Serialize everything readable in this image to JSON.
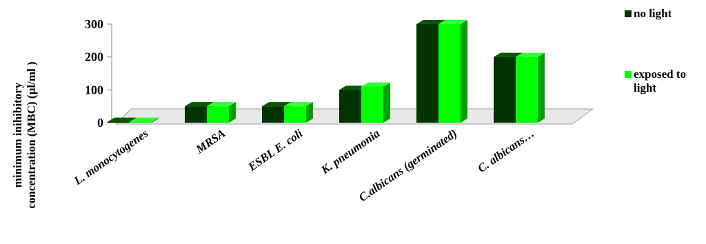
{
  "chart_data": {
    "type": "bar",
    "categories": [
      "L. monocytogenes",
      "MRSA",
      "ESBL E. coli",
      "K. pneumonia",
      "C.albicans (germinated)",
      "C.  albicans…"
    ],
    "series": [
      {
        "name": "no light",
        "values": [
          3,
          50,
          50,
          100,
          300,
          200
        ]
      },
      {
        "name": "exposed to light",
        "values": [
          3,
          50,
          50,
          110,
          300,
          200
        ]
      }
    ],
    "ylim": [
      0,
      300
    ],
    "yticks": [
      "0",
      "100",
      "200",
      "300"
    ],
    "ylabel_lines": [
      "minimum inihibitory",
      "concentration (MBC) (µl/ml )"
    ],
    "legend_position": "right",
    "grid": false,
    "colors": {
      "no_light_front": "#003300",
      "no_light_side": "#002200",
      "no_light_top": "#005a00",
      "light_front": "#00ff00",
      "light_side": "#00a000",
      "light_top": "#33ff33",
      "floor": "#e8e8e8",
      "floor_edge": "#a0a0a0"
    }
  }
}
